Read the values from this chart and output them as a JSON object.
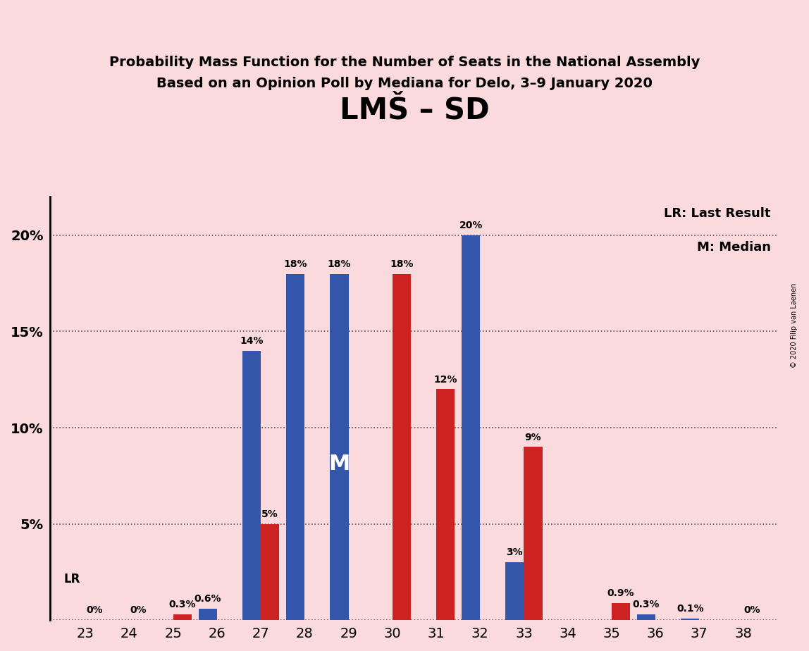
{
  "title": "LMŠ – SD",
  "subtitle1": "Probability Mass Function for the Number of Seats in the National Assembly",
  "subtitle2": "Based on an Opinion Poll by Mediana for Delo, 3–9 January 2020",
  "watermark": "© 2020 Filip van Laenen",
  "seats": [
    23,
    24,
    25,
    26,
    27,
    28,
    29,
    30,
    31,
    32,
    33,
    34,
    35,
    36,
    37,
    38
  ],
  "blue_values": [
    0.0,
    0.0,
    0.0,
    0.6,
    14.0,
    18.0,
    18.0,
    0.0,
    0.0,
    20.0,
    3.0,
    0.0,
    0.0,
    0.3,
    0.1,
    0.0
  ],
  "red_values": [
    0.0,
    0.0,
    0.3,
    0.0,
    5.0,
    0.0,
    0.0,
    18.0,
    12.0,
    0.0,
    9.0,
    0.0,
    0.9,
    0.0,
    0.0,
    0.0
  ],
  "blue_labels": [
    "",
    "",
    "",
    "0.6%",
    "14%",
    "18%",
    "18%",
    "",
    "",
    "20%",
    "3%",
    "",
    "",
    "0.3%",
    "0.1%",
    ""
  ],
  "red_labels": [
    "0%",
    "0%",
    "0.3%",
    "",
    "5%",
    "",
    "",
    "18%",
    "12%",
    "",
    "9%",
    "",
    "0.9%",
    "",
    "",
    "0%"
  ],
  "median_seat_idx": 6,
  "lr_seat_idx": 0,
  "background_color": "#fadadd",
  "red_color": "#cc2222",
  "blue_color": "#3355aa",
  "ylim_max": 22,
  "yticks": [
    0,
    5,
    10,
    15,
    20
  ],
  "ytick_labels": [
    "",
    "5%",
    "10%",
    "15%",
    "20%"
  ],
  "legend_lr": "LR: Last Result",
  "legend_m": "M: Median",
  "lr_label": "LR",
  "m_label": "M"
}
